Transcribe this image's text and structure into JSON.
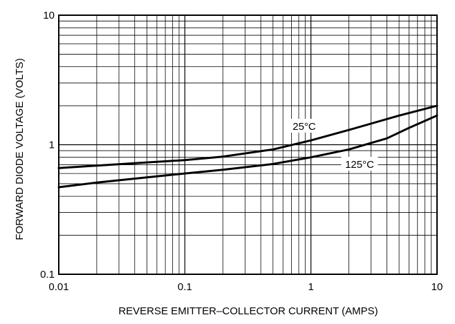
{
  "chart_data": {
    "type": "line",
    "xlabel": "REVERSE EMITTER–COLLECTOR CURRENT (AMPS)",
    "ylabel": "FORWARD DIODE VOLTAGE (VOLTS)",
    "x_scale": "log",
    "y_scale": "log",
    "xlim": [
      0.01,
      10
    ],
    "ylim": [
      0.1,
      10
    ],
    "grid": true,
    "x_ticks": [
      {
        "value": 0.01,
        "label": "0.01"
      },
      {
        "value": 0.1,
        "label": "0.1"
      },
      {
        "value": 1,
        "label": "1"
      },
      {
        "value": 10,
        "label": "10"
      }
    ],
    "y_ticks": [
      {
        "value": 0.1,
        "label": "0.1"
      },
      {
        "value": 1,
        "label": "1"
      },
      {
        "value": 10,
        "label": "10"
      }
    ],
    "series": [
      {
        "name": "25°C",
        "x": [
          0.01,
          0.02,
          0.05,
          0.1,
          0.2,
          0.5,
          1,
          2,
          5,
          10
        ],
        "y": [
          0.66,
          0.69,
          0.73,
          0.76,
          0.81,
          0.92,
          1.08,
          1.3,
          1.68,
          2.0
        ]
      },
      {
        "name": "125°C",
        "x": [
          0.01,
          0.02,
          0.05,
          0.1,
          0.2,
          0.5,
          1,
          2,
          4,
          6,
          10
        ],
        "y": [
          0.47,
          0.51,
          0.56,
          0.6,
          0.64,
          0.71,
          0.8,
          0.92,
          1.12,
          1.35,
          1.68
        ]
      }
    ]
  }
}
